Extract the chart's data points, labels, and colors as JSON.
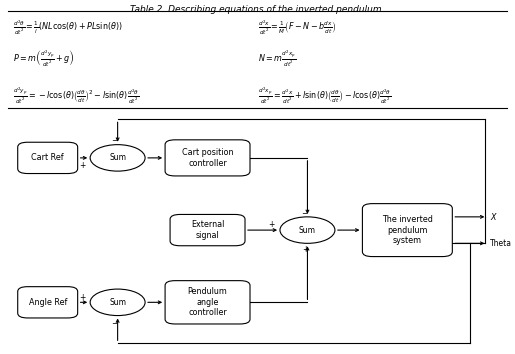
{
  "title": "Table 2. Describing equations of the inverted pendulum.",
  "background_color": "#ffffff",
  "eq_left_1": "$\\frac{d^2\\theta}{dt^2} = \\frac{1}{l}\\left(NL\\cos(\\theta) + PL\\sin(\\theta)\\right)$",
  "eq_left_2": "$P = m\\left(\\frac{d^2y_p}{dt^2} + g\\right)$",
  "eq_left_3": "$\\frac{d^2y_p}{dt^2} = -l\\cos(\\theta)\\left(\\frac{d\\theta}{dt}\\right)^2 - l\\sin(\\theta)\\frac{d^2\\theta}{dt^2}$",
  "eq_right_1": "$\\frac{d^2x}{dt^2} = \\frac{1}{M}\\left(F - N - b\\frac{dx}{dt}\\right)$",
  "eq_right_2": "$N = m\\frac{d^2x_p}{dt^2}$",
  "eq_right_3": "$\\frac{d^2x_p}{dt^2} = \\frac{d^2x}{dt^2} + l\\sin(\\theta)\\left(\\frac{d\\theta}{dt}\\right) - l\\cos(\\theta)\\frac{d^2\\theta}{dt^2}$",
  "figsize": [
    5.15,
    3.54
  ],
  "dpi": 100,
  "lw": 0.8,
  "fs": 5.8,
  "fs_label": 5.5
}
